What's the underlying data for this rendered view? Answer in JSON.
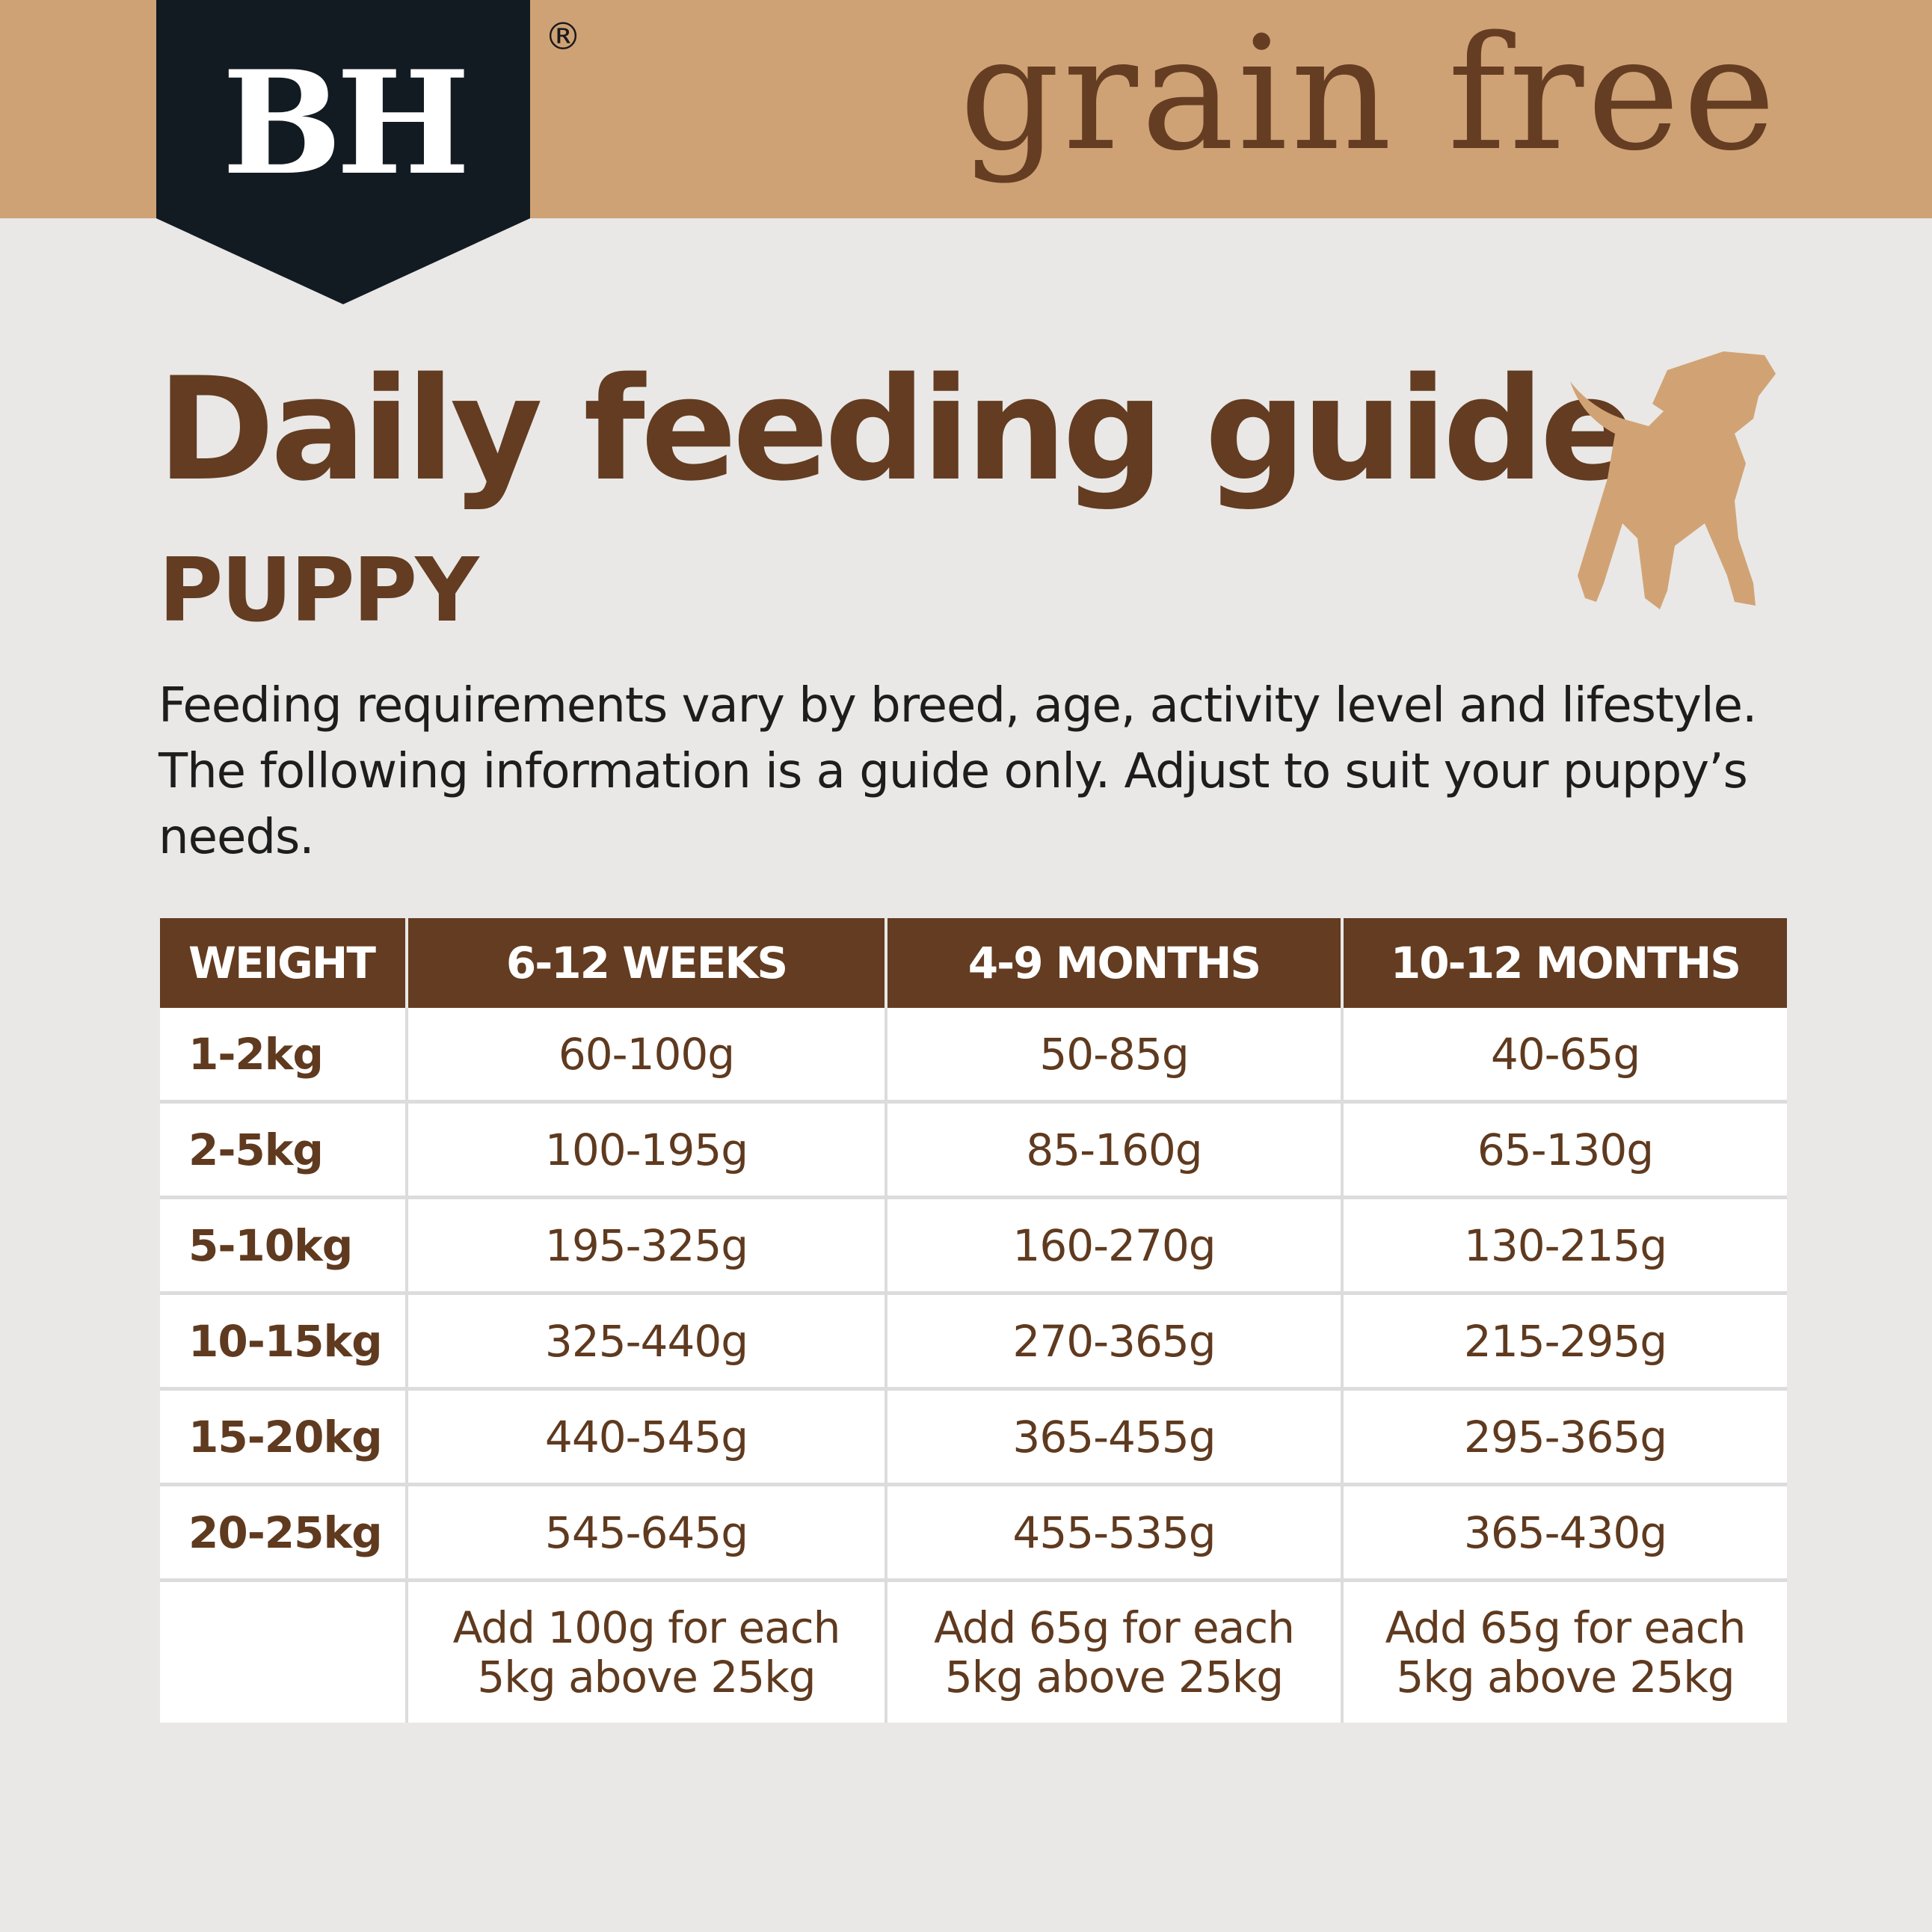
{
  "brand": {
    "logo": "BH",
    "registered": "®",
    "tagline": "grain free"
  },
  "colors": {
    "band": "#cfa276",
    "logo_bg": "#131b22",
    "brown": "#633c21",
    "dog": "#d1a374"
  },
  "title": "Daily feeding guide",
  "subtitle": "PUPPY",
  "description": "Feeding requirements vary by breed, age, activity level and lifestyle. The following information is a guide only.  Adjust to suit your puppy’s needs.",
  "table": {
    "headers": [
      "WEIGHT",
      "6-12 WEEKS",
      "4-9 MONTHS",
      "10-12 MONTHS"
    ],
    "rows": [
      [
        "1-2kg",
        "60-100g",
        "50-85g",
        "40-65g"
      ],
      [
        "2-5kg",
        "100-195g",
        "85-160g",
        "65-130g"
      ],
      [
        "5-10kg",
        "195-325g",
        "160-270g",
        "130-215g"
      ],
      [
        "10-15kg",
        "325-440g",
        "270-365g",
        "215-295g"
      ],
      [
        "15-20kg",
        "440-545g",
        "365-455g",
        "295-365g"
      ],
      [
        "20-25kg",
        "545-645g",
        "455-535g",
        "365-430g"
      ]
    ],
    "note": [
      "",
      "Add 100g for each 5kg above 25kg",
      "Add 65g for each 5kg above 25kg",
      "Add 65g for each 5kg above 25kg"
    ]
  },
  "icons": {
    "dog": "puppy-silhouette-icon"
  }
}
